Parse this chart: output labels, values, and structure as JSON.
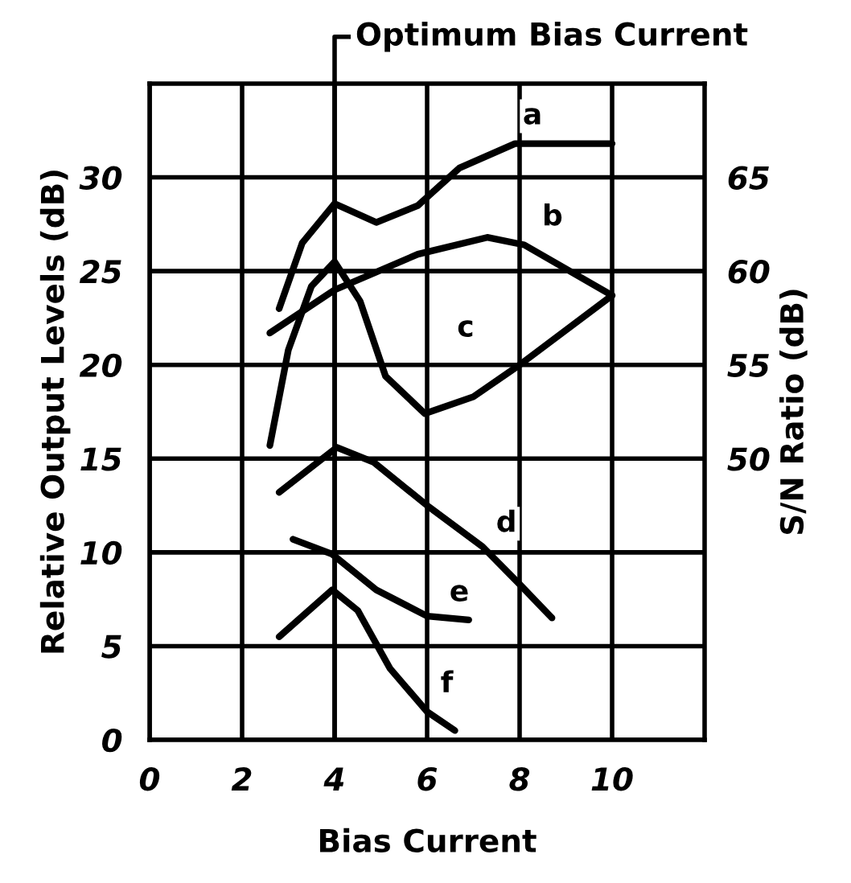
{
  "chart_data": {
    "type": "line",
    "xlabel": "Bias Current",
    "ylabel": "Relative Output Levels (dB)",
    "y2label": "S/N Ratio (dB)",
    "xlim": [
      0,
      12
    ],
    "ylim": [
      0,
      35
    ],
    "xticks": [
      0,
      2,
      4,
      6,
      8,
      10
    ],
    "yticks": [
      0,
      5,
      10,
      15,
      20,
      25,
      30
    ],
    "y2lim": [
      35,
      70
    ],
    "y2ticks": [
      50,
      55,
      60,
      65
    ],
    "grid": true,
    "line_style": "solid",
    "ref_lines": [
      {
        "axis": "x",
        "value": 4,
        "label": "Optimum Bias Current",
        "color": "#000000"
      }
    ],
    "series": [
      {
        "name": "a",
        "color": "#000000",
        "x": [
          2.8,
          3.3,
          4,
          4.9,
          5.8,
          6.7,
          7.9,
          10
        ],
        "values": [
          23,
          26.5,
          28.6,
          27.6,
          28.5,
          30.5,
          31.8,
          31.8
        ]
      },
      {
        "name": "b",
        "color": "#000000",
        "x": [
          2.6,
          4,
          5.8,
          7.3,
          8.1,
          10
        ],
        "values": [
          21.7,
          24,
          25.9,
          26.8,
          26.4,
          23.7
        ]
      },
      {
        "name": "c",
        "color": "#000000",
        "x": [
          2.6,
          3,
          3.5,
          4,
          4.55,
          5.1,
          5.95,
          7,
          8,
          10
        ],
        "values": [
          15.7,
          20.8,
          24.2,
          25.5,
          23.4,
          19.4,
          17.4,
          18.3,
          20,
          23.7
        ]
      },
      {
        "name": "d",
        "color": "#000000",
        "x": [
          2.8,
          4.05,
          4.85,
          6,
          7.2,
          8,
          8.7
        ],
        "values": [
          13.2,
          15.6,
          14.8,
          12.5,
          10.3,
          8.3,
          6.5
        ]
      },
      {
        "name": "e",
        "color": "#000000",
        "x": [
          3.1,
          3.95,
          4.9,
          6,
          6.9
        ],
        "values": [
          10.7,
          9.9,
          8,
          6.6,
          6.4
        ]
      },
      {
        "name": "f",
        "color": "#000000",
        "x": [
          2.8,
          3.95,
          4.5,
          5.2,
          6,
          6.6
        ],
        "values": [
          5.5,
          8,
          6.9,
          3.8,
          1.5,
          0.5
        ]
      }
    ]
  }
}
